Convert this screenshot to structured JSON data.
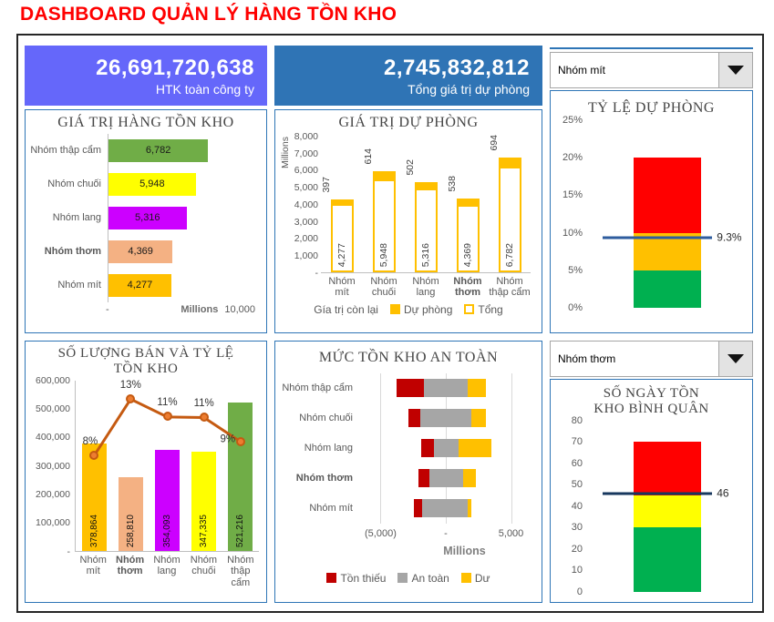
{
  "page": {
    "title": "DASHBOARD QUẢN LÝ HÀNG TỒN KHO"
  },
  "kpis": [
    {
      "value": "26,691,720,638",
      "label": "HTK toàn công ty",
      "bg": "#6567FA"
    },
    {
      "value": "2,745,832,812",
      "label": "Tổng giá trị dự phòng",
      "bg": "#2F74B5"
    }
  ],
  "dropdowns": {
    "top_group_filter": {
      "value": "Nhóm mít"
    },
    "bottom_group_filter": {
      "value": "Nhóm thơm"
    }
  },
  "colors": {
    "panel_border": "#2E75B6",
    "title_red": "#FF0000",
    "axis_text": "#595959",
    "gold": "#FFC000",
    "dark_red": "#C00000",
    "gray": "#A6A6A6"
  },
  "chart_data": [
    {
      "id": "inventory_value",
      "type": "bar",
      "orientation": "horizontal",
      "title": "GIÁ TRỊ HÀNG TỒN KHO",
      "categories": [
        "Nhóm thập cẩm",
        "Nhóm chuối",
        "Nhóm lang",
        "Nhóm thơm",
        "Nhóm mít"
      ],
      "values": [
        6782,
        5948,
        5316,
        4369,
        4277
      ],
      "value_labels": [
        "6,782",
        "5,948",
        "5,316",
        "4,369",
        "4,277"
      ],
      "bar_colors": [
        "#70AD47",
        "#FFFF00",
        "#CC00FF",
        "#F4B183",
        "#FFC000"
      ],
      "bold_category": "Nhóm thơm",
      "xlim": [
        0,
        10000
      ],
      "x_ticks": [
        "-",
        "10,000"
      ],
      "unit_label": "Millions"
    },
    {
      "id": "provision_value",
      "type": "bar",
      "subtype": "stacked-column",
      "title": "GIÁ TRỊ DỰ PHÒNG",
      "ylabel": "Millions",
      "ylim": [
        0,
        8000
      ],
      "bold_category": "Nhóm thơm",
      "y_ticks": [
        {
          "label": "8,000",
          "value": 8000
        },
        {
          "label": "7,000",
          "value": 7000
        },
        {
          "label": "6,000",
          "value": 6000
        },
        {
          "label": "5,000",
          "value": 5000
        },
        {
          "label": "4,000",
          "value": 4000
        },
        {
          "label": "3,000",
          "value": 3000
        },
        {
          "label": "2,000",
          "value": 2000
        },
        {
          "label": "1,000",
          "value": 1000
        },
        {
          "label": "-",
          "value": 0
        }
      ],
      "columns": [
        {
          "category": "Nhóm mít",
          "total": 4277,
          "total_label": "4,277",
          "provision": 397,
          "provision_label": "397"
        },
        {
          "category": "Nhóm chuối",
          "total": 5948,
          "total_label": "5,948",
          "provision": 614,
          "provision_label": "614"
        },
        {
          "category": "Nhóm lang",
          "total": 5316,
          "total_label": "5,316",
          "provision": 502,
          "provision_label": "502"
        },
        {
          "category": "Nhóm thơm",
          "total": 4369,
          "total_label": "4,369",
          "provision": 538,
          "provision_label": "538"
        },
        {
          "category": "Nhóm thập cẩm",
          "total": 6782,
          "total_label": "6,782",
          "provision": 694,
          "provision_label": "694"
        }
      ],
      "legend": [
        {
          "label": "Gía trị còn lại",
          "swatch": "none"
        },
        {
          "label": "Dự phòng",
          "swatch": "#FFC000"
        },
        {
          "label": "Tổng",
          "swatch": "outline"
        }
      ]
    },
    {
      "id": "provision_ratio",
      "type": "bar",
      "subtype": "gauge-column",
      "title": "TỶ LỆ DỰ PHÒNG",
      "ylim": [
        0,
        25
      ],
      "y_ticks": [
        {
          "label": "25%",
          "value": 25
        },
        {
          "label": "20%",
          "value": 20
        },
        {
          "label": "15%",
          "value": 15
        },
        {
          "label": "10%",
          "value": 10
        },
        {
          "label": "5%",
          "value": 5
        },
        {
          "label": "0%",
          "value": 0
        }
      ],
      "zones": [
        {
          "from": 0,
          "to": 5,
          "color": "#00B050"
        },
        {
          "from": 5,
          "to": 10,
          "color": "#FFC000"
        },
        {
          "from": 10,
          "to": 20,
          "color": "#FF0000"
        }
      ],
      "marker": {
        "value": 9.3,
        "label": "9.3%",
        "color": "#2E5C9E"
      }
    },
    {
      "id": "sales_quantity_ratio",
      "type": "bar",
      "subtype": "bar+line",
      "title": "SỐ LƯỢNG BÁN VÀ TỶ LỆ TỒN KHO",
      "categories": [
        "Nhóm mít",
        "Nhóm thơm",
        "Nhóm lang",
        "Nhóm chuối",
        "Nhóm thập cẩm"
      ],
      "bold_category": "Nhóm thơm",
      "bar_values": [
        378864,
        258810,
        354093,
        347335,
        521216
      ],
      "bar_labels": [
        "378,864",
        "258,810",
        "354,093",
        "347,335",
        "521,216"
      ],
      "bar_colors": [
        "#FFC000",
        "#F4B183",
        "#CC00FF",
        "#FFFF00",
        "#70AD47"
      ],
      "line_percent_labels": [
        "8%",
        "13%",
        "11%",
        "11%",
        "9%"
      ],
      "line_plot_values": [
        335000,
        535000,
        472000,
        470000,
        385000
      ],
      "line_color": "#C55A11",
      "marker_color": "#ED7D31",
      "ylim": [
        0,
        600000
      ],
      "y_ticks": [
        {
          "label": "600,000",
          "value": 600000
        },
        {
          "label": "500,000",
          "value": 500000
        },
        {
          "label": "400,000",
          "value": 400000
        },
        {
          "label": "300,000",
          "value": 300000
        },
        {
          "label": "200,000",
          "value": 200000
        },
        {
          "label": "100,000",
          "value": 100000
        },
        {
          "label": "-",
          "value": 0
        }
      ]
    },
    {
      "id": "safety_stock_level",
      "type": "bar",
      "subtype": "stacked-bar-horizontal",
      "title": "MỨC TỒN KHO AN TOÀN",
      "categories": [
        "Nhóm thập cẩm",
        "Nhóm chuối",
        "Nhóm lang",
        "Nhóm thơm",
        "Nhóm mít"
      ],
      "bold_category": "Nhóm thơm",
      "xlim": [
        -6500,
        6500
      ],
      "x_ticks": [
        {
          "label": "(5,000)",
          "value": -5000
        },
        {
          "label": "-",
          "value": 0
        },
        {
          "label": "5,000",
          "value": 5000
        }
      ],
      "unit_label": "Millions",
      "series": [
        {
          "name": "Tồn thiếu",
          "color": "#C00000",
          "ranges": [
            [
              -3800,
              -1700
            ],
            [
              -2900,
              -1950
            ],
            [
              -1900,
              -900
            ],
            [
              -2100,
              -1250
            ],
            [
              -2450,
              -1800
            ]
          ]
        },
        {
          "name": "An toàn",
          "color": "#A6A6A6",
          "ranges": [
            [
              -1700,
              1700
            ],
            [
              -1950,
              1950
            ],
            [
              -900,
              950
            ],
            [
              -1250,
              1350
            ],
            [
              -1800,
              1650
            ]
          ]
        },
        {
          "name": "Dư",
          "color": "#FFC000",
          "ranges": [
            [
              1700,
              3050
            ],
            [
              1950,
              3100
            ],
            [
              950,
              3500
            ],
            [
              1350,
              2300
            ],
            [
              1650,
              1950
            ]
          ]
        }
      ]
    },
    {
      "id": "avg_stock_days",
      "type": "bar",
      "subtype": "gauge-column",
      "title": "SỐ NGÀY TỒN KHO BÌNH QUÂN",
      "ylim": [
        0,
        80
      ],
      "y_ticks": [
        {
          "label": "80",
          "value": 80
        },
        {
          "label": "70",
          "value": 70
        },
        {
          "label": "60",
          "value": 60
        },
        {
          "label": "50",
          "value": 50
        },
        {
          "label": "40",
          "value": 40
        },
        {
          "label": "30",
          "value": 30
        },
        {
          "label": "20",
          "value": 20
        },
        {
          "label": "10",
          "value": 10
        },
        {
          "label": "0",
          "value": 0
        }
      ],
      "zones": [
        {
          "from": 0,
          "to": 30,
          "color": "#00B050"
        },
        {
          "from": 30,
          "to": 45,
          "color": "#FFFF00"
        },
        {
          "from": 45,
          "to": 70,
          "color": "#FF0000"
        }
      ],
      "marker": {
        "value": 46,
        "label": "46",
        "color": "#17375E"
      }
    }
  ]
}
